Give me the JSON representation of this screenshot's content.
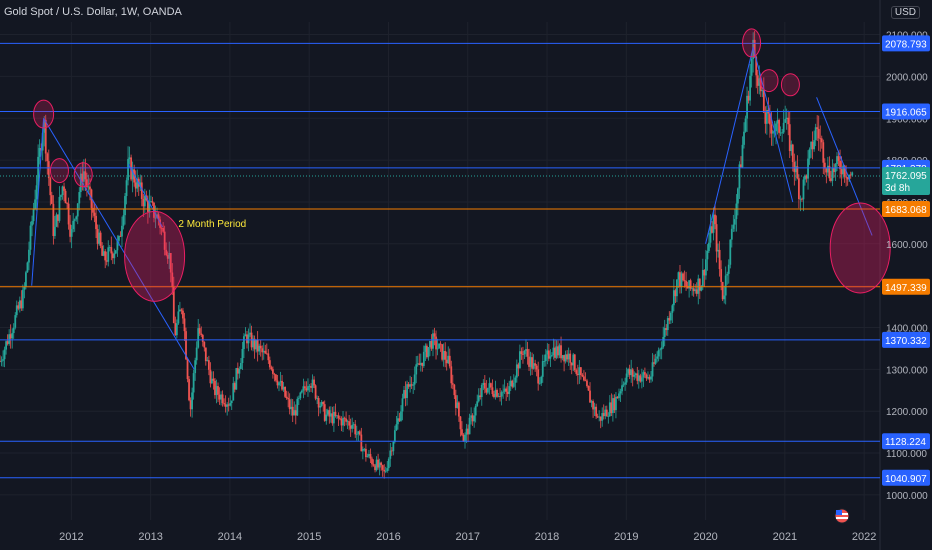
{
  "header": {
    "title": "Gold Spot / U.S. Dollar, 1W, OANDA",
    "currency": "USD"
  },
  "colors": {
    "bg": "#131722",
    "grid": "#1e222d",
    "up": "#26a69a",
    "down": "#ef5350",
    "hline": "#2962ff",
    "hline_orange": "#f57c00",
    "text": "#b2b5be"
  },
  "chart_data": {
    "type": "candlestick",
    "ylim": [
      940,
      2130
    ],
    "x_range": [
      2011.1,
      2022.2
    ],
    "price_ticks": [
      {
        "v": 2100,
        "label": "2100.000"
      },
      {
        "v": 2000,
        "label": "2000.000"
      },
      {
        "v": 1900,
        "label": "1900.000"
      },
      {
        "v": 1800,
        "label": "1800.000"
      },
      {
        "v": 1700,
        "label": "1700.000"
      },
      {
        "v": 1600,
        "label": "1600.000"
      },
      {
        "v": 1500,
        "label": "1500.000"
      },
      {
        "v": 1400,
        "label": "1400.000"
      },
      {
        "v": 1300,
        "label": "1300.000"
      },
      {
        "v": 1200,
        "label": "1200.000"
      },
      {
        "v": 1100,
        "label": "1100.000"
      },
      {
        "v": 1000,
        "label": "1000.000"
      }
    ],
    "time_ticks": [
      {
        "t": 2012,
        "label": "2012"
      },
      {
        "t": 2013,
        "label": "2013"
      },
      {
        "t": 2014,
        "label": "2014"
      },
      {
        "t": 2015,
        "label": "2015"
      },
      {
        "t": 2016,
        "label": "2016"
      },
      {
        "t": 2017,
        "label": "2017"
      },
      {
        "t": 2018,
        "label": "2018"
      },
      {
        "t": 2019,
        "label": "2019"
      },
      {
        "t": 2020,
        "label": "2020"
      },
      {
        "t": 2021,
        "label": "2021"
      },
      {
        "t": 2022,
        "label": "2022"
      }
    ],
    "horizontal_lines": [
      {
        "price": 2078.793,
        "label": "2078.793",
        "color": "#2962ff"
      },
      {
        "price": 1916.065,
        "label": "1916.065",
        "color": "#2962ff"
      },
      {
        "price": 1781.378,
        "label": "1781.378",
        "color": "#2962ff"
      },
      {
        "price": 1683.068,
        "label": "1683.068",
        "color": "#f57c00"
      },
      {
        "price": 1497.339,
        "label": "1497.339",
        "color": "#f57c00"
      },
      {
        "price": 1370.332,
        "label": "1370.332",
        "color": "#2962ff"
      },
      {
        "price": 1128.224,
        "label": "1128.224",
        "color": "#2962ff"
      },
      {
        "price": 1040.907,
        "label": "1040.907",
        "color": "#2962ff"
      }
    ],
    "current_price": {
      "price": 1762.095,
      "label": "1762.095",
      "countdown": "3d 8h"
    },
    "price_path": [
      [
        2011.1,
        1320
      ],
      [
        2011.4,
        1480
      ],
      [
        2011.65,
        1900
      ],
      [
        2011.78,
        1620
      ],
      [
        2011.9,
        1750
      ],
      [
        2012.0,
        1620
      ],
      [
        2012.15,
        1780
      ],
      [
        2012.4,
        1560
      ],
      [
        2012.6,
        1600
      ],
      [
        2012.72,
        1790
      ],
      [
        2012.9,
        1710
      ],
      [
        2013.1,
        1660
      ],
      [
        2013.25,
        1560
      ],
      [
        2013.3,
        1380
      ],
      [
        2013.4,
        1460
      ],
      [
        2013.5,
        1200
      ],
      [
        2013.6,
        1400
      ],
      [
        2013.8,
        1250
      ],
      [
        2014.0,
        1220
      ],
      [
        2014.2,
        1380
      ],
      [
        2014.5,
        1320
      ],
      [
        2014.8,
        1190
      ],
      [
        2015.0,
        1280
      ],
      [
        2015.2,
        1190
      ],
      [
        2015.55,
        1170
      ],
      [
        2015.7,
        1100
      ],
      [
        2015.95,
        1050
      ],
      [
        2016.2,
        1240
      ],
      [
        2016.55,
        1370
      ],
      [
        2016.75,
        1320
      ],
      [
        2016.95,
        1130
      ],
      [
        2017.2,
        1260
      ],
      [
        2017.5,
        1240
      ],
      [
        2017.7,
        1350
      ],
      [
        2017.9,
        1280
      ],
      [
        2018.05,
        1350
      ],
      [
        2018.3,
        1330
      ],
      [
        2018.5,
        1250
      ],
      [
        2018.65,
        1180
      ],
      [
        2018.85,
        1220
      ],
      [
        2019.0,
        1290
      ],
      [
        2019.3,
        1280
      ],
      [
        2019.5,
        1400
      ],
      [
        2019.65,
        1520
      ],
      [
        2019.8,
        1490
      ],
      [
        2019.95,
        1510
      ],
      [
        2020.1,
        1660
      ],
      [
        2020.22,
        1470
      ],
      [
        2020.4,
        1720
      ],
      [
        2020.6,
        2070
      ],
      [
        2020.75,
        1900
      ],
      [
        2020.9,
        1870
      ],
      [
        2021.0,
        1900
      ],
      [
        2021.2,
        1710
      ],
      [
        2021.4,
        1880
      ],
      [
        2021.55,
        1770
      ],
      [
        2021.7,
        1790
      ],
      [
        2021.85,
        1760
      ]
    ],
    "annotations": [
      {
        "type": "text",
        "text": "2 Month Period",
        "t": 2013.35,
        "price": 1640,
        "color": "#ffeb3b"
      }
    ],
    "circles": [
      {
        "t": 2011.65,
        "price": 1910,
        "rx": 10,
        "ry": 14
      },
      {
        "t": 2011.85,
        "price": 1775,
        "rx": 9,
        "ry": 12
      },
      {
        "t": 2012.15,
        "price": 1765,
        "rx": 9,
        "ry": 12
      },
      {
        "t": 2020.58,
        "price": 2080,
        "rx": 9,
        "ry": 14
      },
      {
        "t": 2020.8,
        "price": 1990,
        "rx": 9,
        "ry": 11
      },
      {
        "t": 2021.07,
        "price": 1980,
        "rx": 9,
        "ry": 11
      },
      {
        "t": 2013.05,
        "price": 1570,
        "rx": 30,
        "ry": 45,
        "big": true
      },
      {
        "t": 2021.95,
        "price": 1590,
        "rx": 30,
        "ry": 45,
        "big": true
      }
    ],
    "trend_lines": [
      [
        [
          2011.65,
          1900
        ],
        [
          2013.55,
          1300
        ]
      ],
      [
        [
          2012.72,
          1790
        ],
        [
          2013.15,
          1640
        ]
      ],
      [
        [
          2011.65,
          1900
        ],
        [
          2011.5,
          1500
        ]
      ],
      [
        [
          2020.6,
          2070
        ],
        [
          2020.0,
          1600
        ]
      ],
      [
        [
          2020.6,
          2070
        ],
        [
          2021.1,
          1700
        ]
      ],
      [
        [
          2021.4,
          1950
        ],
        [
          2022.1,
          1620
        ]
      ]
    ]
  }
}
